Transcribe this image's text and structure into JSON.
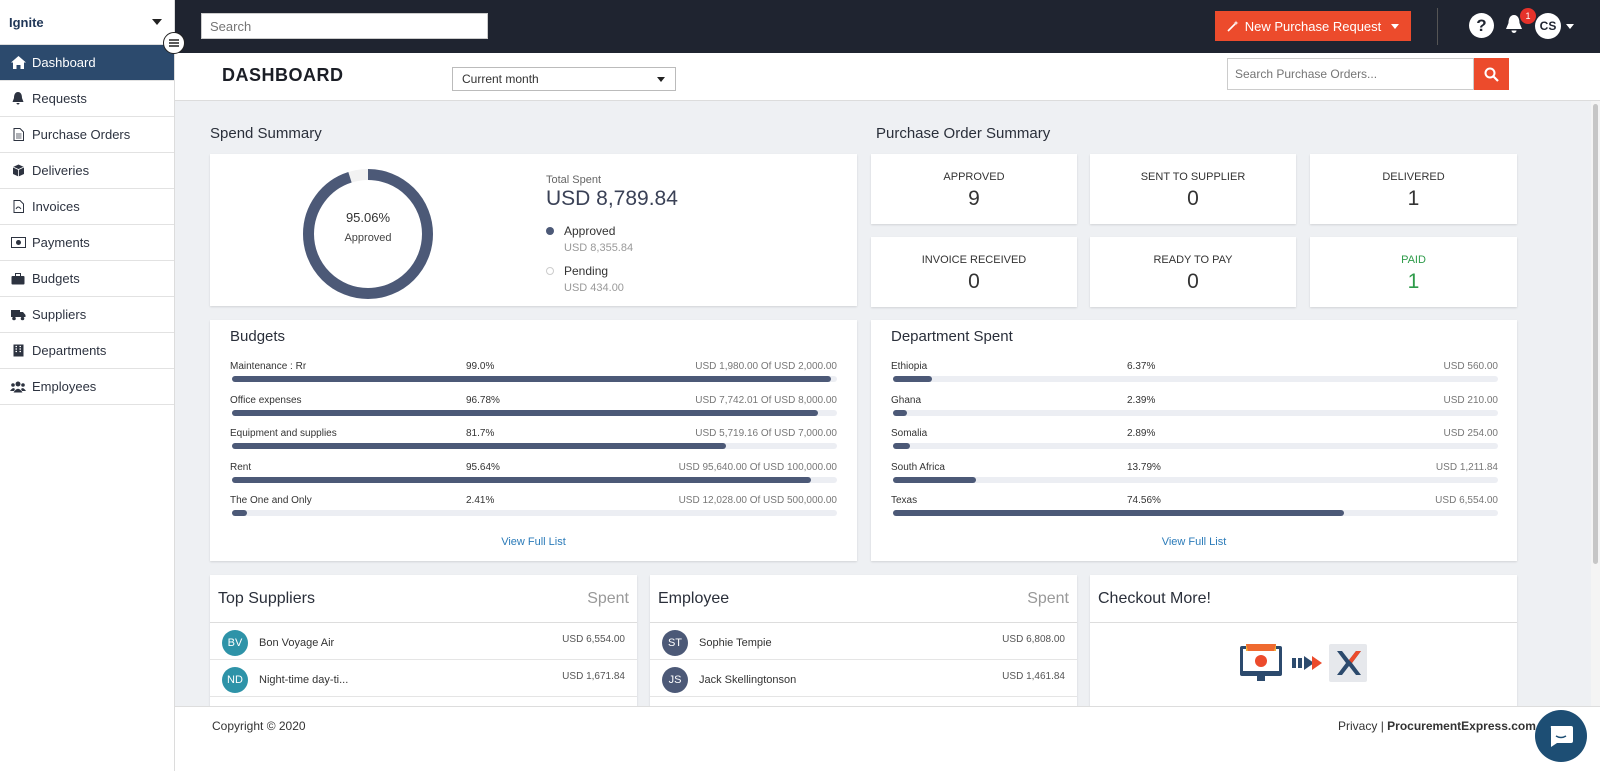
{
  "sidebar": {
    "org_name": "Ignite",
    "items": [
      {
        "label": "Dashboard",
        "icon": "home-icon"
      },
      {
        "label": "Requests",
        "icon": "bell-icon"
      },
      {
        "label": "Purchase Orders",
        "icon": "document-icon"
      },
      {
        "label": "Deliveries",
        "icon": "box-icon"
      },
      {
        "label": "Invoices",
        "icon": "pdf-icon"
      },
      {
        "label": "Payments",
        "icon": "money-icon"
      },
      {
        "label": "Budgets",
        "icon": "briefcase-icon"
      },
      {
        "label": "Suppliers",
        "icon": "truck-icon"
      },
      {
        "label": "Departments",
        "icon": "building-icon"
      },
      {
        "label": "Employees",
        "icon": "users-icon"
      }
    ]
  },
  "topbar": {
    "search_placeholder": "Search",
    "new_request_label": "New Purchase Request",
    "help_label": "?",
    "notification_count": "1",
    "user_initials": "CS"
  },
  "header": {
    "title": "DASHBOARD",
    "period": "Current month",
    "po_search_placeholder": "Search Purchase Orders..."
  },
  "spend_summary": {
    "title": "Spend Summary",
    "approved_pct": "95.06%",
    "approved_fraction": 0.9506,
    "donut_label": "Approved",
    "total_label": "Total Spent",
    "total_value": "USD 8,789.84",
    "legend": [
      {
        "name": "Approved",
        "amount": "USD 8,355.84"
      },
      {
        "name": "Pending",
        "amount": "USD 434.00"
      }
    ],
    "colors": {
      "approved": "#4c5977",
      "pending": "#f2f2f2"
    }
  },
  "po_summary": {
    "title": "Purchase Order Summary",
    "tiles": [
      {
        "label": "APPROVED",
        "value": "9"
      },
      {
        "label": "SENT TO SUPPLIER",
        "value": "0"
      },
      {
        "label": "DELIVERED",
        "value": "1"
      },
      {
        "label": "INVOICE RECEIVED",
        "value": "0"
      },
      {
        "label": "READY TO PAY",
        "value": "0"
      },
      {
        "label": "PAID",
        "value": "1"
      }
    ],
    "paid_color": "#2e9b4a"
  },
  "budgets": {
    "title": "Budgets",
    "rows": [
      {
        "name": "Maintenance : Rr",
        "pct": "99.0%",
        "fraction": 0.99,
        "amount": "USD 1,980.00 Of USD 2,000.00"
      },
      {
        "name": "Office expenses",
        "pct": "96.78%",
        "fraction": 0.9678,
        "amount": "USD 7,742.01 Of USD 8,000.00"
      },
      {
        "name": "Equipment and supplies",
        "pct": "81.7%",
        "fraction": 0.817,
        "amount": "USD 5,719.16 Of USD 7,000.00"
      },
      {
        "name": "Rent",
        "pct": "95.64%",
        "fraction": 0.9564,
        "amount": "USD 95,640.00 Of USD 100,000.00"
      },
      {
        "name": "The One and Only",
        "pct": "2.41%",
        "fraction": 0.0241,
        "amount": "USD 12,028.00 Of USD 500,000.00"
      }
    ],
    "link": "View Full List"
  },
  "departments": {
    "title": "Department Spent",
    "rows": [
      {
        "name": "Ethiopia",
        "pct": "6.37%",
        "fraction": 0.0637,
        "amount": "USD 560.00"
      },
      {
        "name": "Ghana",
        "pct": "2.39%",
        "fraction": 0.0239,
        "amount": "USD 210.00"
      },
      {
        "name": "Somalia",
        "pct": "2.89%",
        "fraction": 0.0289,
        "amount": "USD 254.00"
      },
      {
        "name": "South Africa",
        "pct": "13.79%",
        "fraction": 0.1379,
        "amount": "USD 1,211.84"
      },
      {
        "name": "Texas",
        "pct": "74.56%",
        "fraction": 0.7456,
        "amount": "USD 6,554.00"
      }
    ],
    "link": "View Full List"
  },
  "top_suppliers": {
    "title": "Top Suppliers",
    "right_label": "Spent",
    "rows": [
      {
        "initials": "BV",
        "name": "Bon Voyage Air",
        "amount": "USD 6,554.00"
      },
      {
        "initials": "ND",
        "name": "Night-time day-ti...",
        "amount": "USD 1,671.84"
      }
    ],
    "avatar_color": "#2e93a8"
  },
  "employees": {
    "title": "Employee",
    "right_label": "Spent",
    "rows": [
      {
        "initials": "ST",
        "name": "Sophie Tempie",
        "amount": "USD 6,808.00"
      },
      {
        "initials": "JS",
        "name": "Jack Skellingtonson",
        "amount": "USD 1,461.84"
      }
    ],
    "avatar_color": "#4c5977"
  },
  "checkout": {
    "title": "Checkout More!"
  },
  "footer": {
    "copyright": "Copyright © 2020",
    "privacy": "Privacy",
    "separator": "|",
    "brand": "ProcurementExpress.com"
  }
}
